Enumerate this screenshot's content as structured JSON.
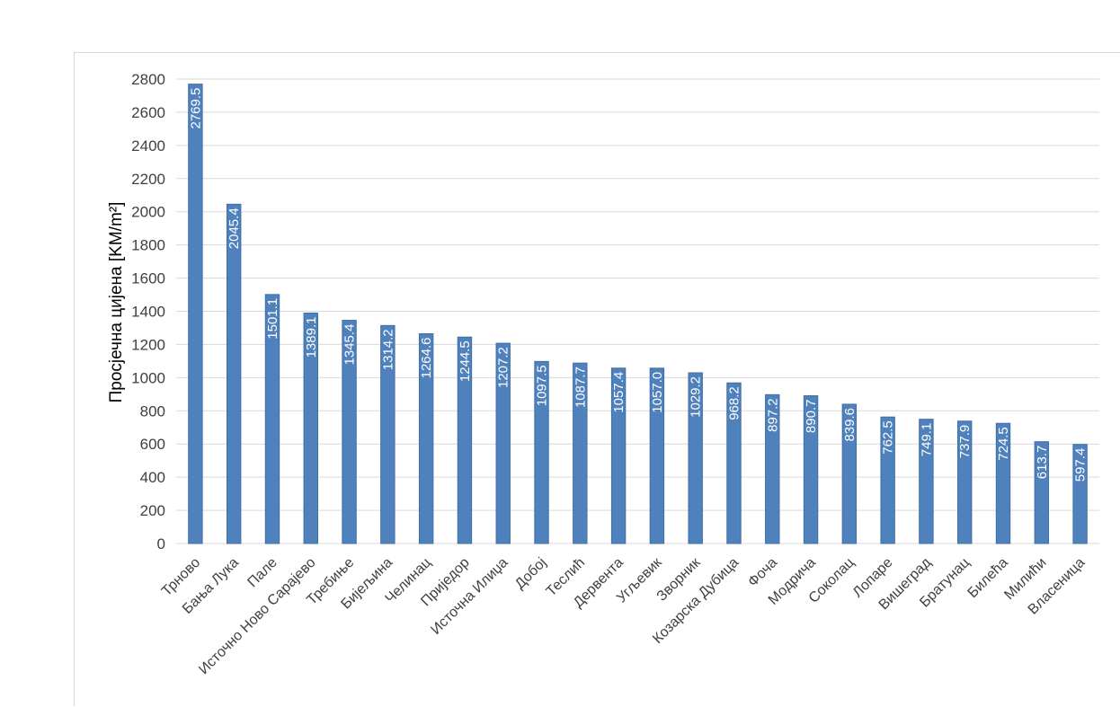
{
  "chart_data": {
    "type": "bar",
    "title": "",
    "xlabel": "",
    "ylabel": "Просјечна цијена [KM/m²]",
    "ylim": [
      0,
      2800
    ],
    "ytick_step": 200,
    "grid": true,
    "bar_color": "#4f81bd",
    "bar_edge_color": "#3f6fa8",
    "grid_color": "#d9d9d9",
    "categories": [
      "Трново",
      "Бања Лука",
      "Пале",
      "Источно Ново Сарајево",
      "Требиње",
      "Бијељина",
      "Челинац",
      "Приједор",
      "Источна Илиџа",
      "Добој",
      "Теслић",
      "Дервента",
      "Угљевик",
      "Зворник",
      "Козарска Дубица",
      "Фоча",
      "Модрича",
      "Соколац",
      "Лопаре",
      "Вишеград",
      "Братунац",
      "Билећа",
      "Милићи",
      "Власеница"
    ],
    "values": [
      2769.5,
      2045.4,
      1501.1,
      1389.1,
      1345.4,
      1314.2,
      1264.6,
      1244.5,
      1207.2,
      1097.5,
      1087.7,
      1057.4,
      1057.0,
      1029.2,
      968.2,
      897.2,
      890.7,
      839.6,
      762.5,
      749.1,
      737.9,
      724.5,
      613.7,
      597.4
    ],
    "data_labels": [
      "2769.5",
      "2045.4",
      "1501.1",
      "1389.1",
      "1345.4",
      "1314.2",
      "1264.6",
      "1244.5",
      "1207.2",
      "1097.5",
      "1087.7",
      "1057.4",
      "1057.0",
      "1029.2",
      "968.2",
      "897.2",
      "890.7",
      "839.6",
      "762.5",
      "749.1",
      "737.9",
      "724.5",
      "613.7",
      "597.4"
    ]
  }
}
